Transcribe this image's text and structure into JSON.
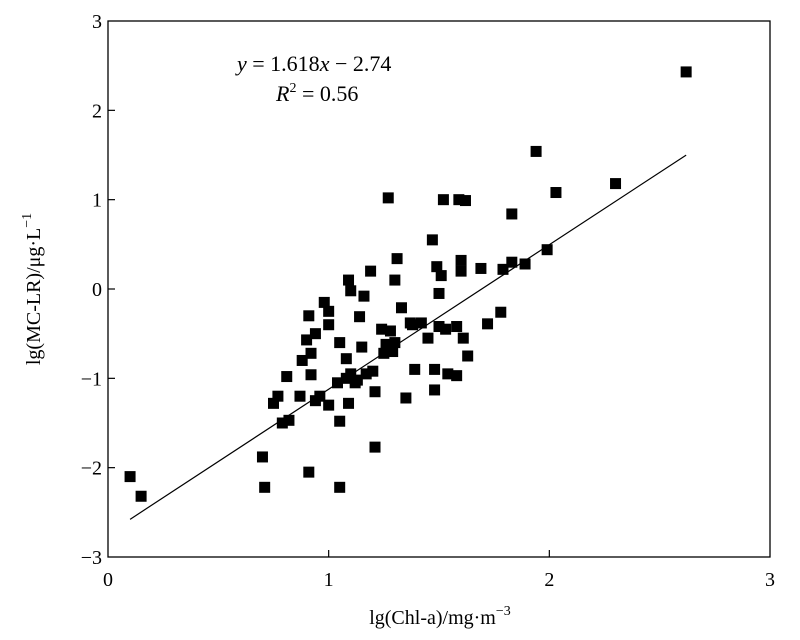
{
  "chart_data": {
    "type": "scatter",
    "title": "",
    "xlabel": "lg(Chl-a)/mg·m",
    "xlabel_sup": "−3",
    "ylabel": "lg(MC-LR)/μg·L",
    "ylabel_sup": "−1",
    "xlim": [
      0,
      3
    ],
    "ylim": [
      -3,
      3
    ],
    "x_ticks": [
      0,
      1,
      2,
      3
    ],
    "x_tick_labels": [
      "0",
      "1",
      "2",
      "3"
    ],
    "y_ticks": [
      -3,
      -2,
      -1,
      0,
      1,
      2,
      3
    ],
    "y_tick_labels": [
      "−3",
      "−2",
      "−1",
      "0",
      "1",
      "2",
      "3"
    ],
    "grid": false,
    "annotation": {
      "equation_y": "y",
      "equation_rest": " = 1.618",
      "equation_x": "x",
      "equation_tail": " −  2.74",
      "r2_R": "R",
      "r2_sup": "2",
      "r2_tail": " = 0.56"
    },
    "fit_line": {
      "slope": 1.618,
      "intercept": -2.74,
      "x_range": [
        0.1,
        2.62
      ]
    },
    "color": "#000000",
    "points": [
      [
        0.1,
        -2.1
      ],
      [
        0.15,
        -2.32
      ],
      [
        0.7,
        -1.88
      ],
      [
        0.71,
        -2.22
      ],
      [
        0.75,
        -1.28
      ],
      [
        0.77,
        -1.2
      ],
      [
        0.79,
        -1.5
      ],
      [
        0.81,
        -0.98
      ],
      [
        0.82,
        -1.47
      ],
      [
        0.87,
        -1.2
      ],
      [
        0.88,
        -0.8
      ],
      [
        0.9,
        -0.57
      ],
      [
        0.91,
        -0.3
      ],
      [
        0.92,
        -0.72
      ],
      [
        0.92,
        -0.96
      ],
      [
        0.91,
        -2.05
      ],
      [
        0.94,
        -1.25
      ],
      [
        0.94,
        -0.5
      ],
      [
        0.96,
        -1.2
      ],
      [
        0.98,
        -0.15
      ],
      [
        1.0,
        -0.25
      ],
      [
        1.0,
        -0.4
      ],
      [
        1.0,
        -1.3
      ],
      [
        1.04,
        -1.05
      ],
      [
        1.05,
        -0.6
      ],
      [
        1.05,
        -1.48
      ],
      [
        1.05,
        -2.22
      ],
      [
        1.08,
        -1.0
      ],
      [
        1.08,
        -0.78
      ],
      [
        1.09,
        -1.28
      ],
      [
        1.09,
        0.1
      ],
      [
        1.1,
        -0.02
      ],
      [
        1.1,
        -0.95
      ],
      [
        1.12,
        -1.05
      ],
      [
        1.13,
        -1.02
      ],
      [
        1.14,
        -0.31
      ],
      [
        1.15,
        -0.65
      ],
      [
        1.16,
        -0.08
      ],
      [
        1.17,
        -0.95
      ],
      [
        1.19,
        0.2
      ],
      [
        1.2,
        -0.92
      ],
      [
        1.21,
        -1.15
      ],
      [
        1.21,
        -1.77
      ],
      [
        1.24,
        -0.45
      ],
      [
        1.25,
        -0.72
      ],
      [
        1.26,
        -0.62
      ],
      [
        1.27,
        1.02
      ],
      [
        1.28,
        -0.47
      ],
      [
        1.29,
        -0.7
      ],
      [
        1.3,
        0.1
      ],
      [
        1.3,
        -0.6
      ],
      [
        1.31,
        0.34
      ],
      [
        1.33,
        -0.21
      ],
      [
        1.35,
        -1.22
      ],
      [
        1.37,
        -0.38
      ],
      [
        1.38,
        -0.4
      ],
      [
        1.39,
        -0.9
      ],
      [
        1.42,
        -0.38
      ],
      [
        1.45,
        -0.55
      ],
      [
        1.47,
        0.55
      ],
      [
        1.48,
        -0.9
      ],
      [
        1.48,
        -1.13
      ],
      [
        1.49,
        0.25
      ],
      [
        1.5,
        -0.05
      ],
      [
        1.5,
        -0.42
      ],
      [
        1.51,
        0.15
      ],
      [
        1.52,
        1.0
      ],
      [
        1.53,
        -0.45
      ],
      [
        1.54,
        -0.95
      ],
      [
        1.58,
        -0.42
      ],
      [
        1.58,
        -0.97
      ],
      [
        1.59,
        1.0
      ],
      [
        1.6,
        0.32
      ],
      [
        1.6,
        0.2
      ],
      [
        1.61,
        -0.55
      ],
      [
        1.62,
        0.99
      ],
      [
        1.63,
        -0.75
      ],
      [
        1.69,
        0.23
      ],
      [
        1.72,
        -0.39
      ],
      [
        1.78,
        -0.26
      ],
      [
        1.79,
        0.22
      ],
      [
        1.83,
        0.3
      ],
      [
        1.83,
        0.84
      ],
      [
        1.89,
        0.28
      ],
      [
        1.94,
        1.54
      ],
      [
        1.99,
        0.44
      ],
      [
        2.03,
        1.08
      ],
      [
        2.3,
        1.18
      ],
      [
        2.62,
        2.43
      ]
    ]
  }
}
